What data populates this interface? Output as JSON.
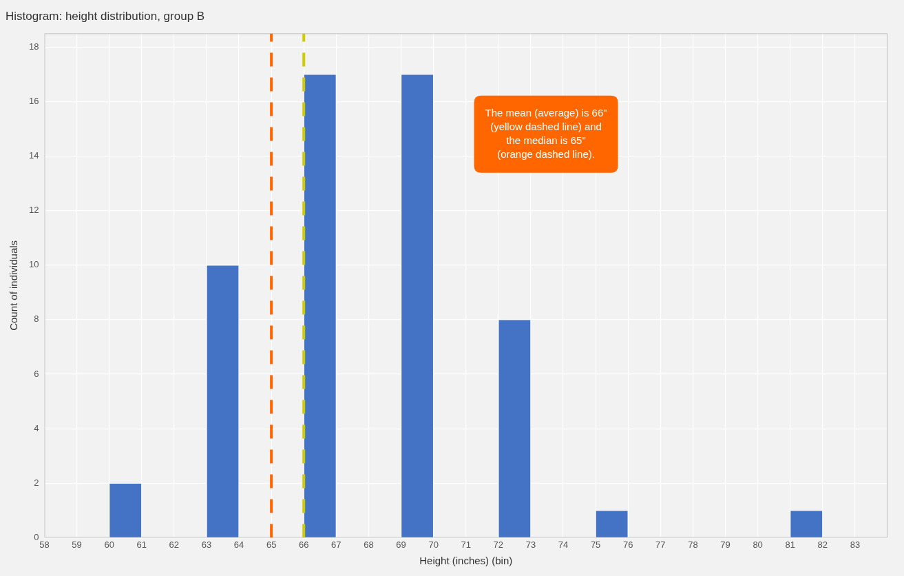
{
  "chart_data": {
    "type": "histogram",
    "title": "Histogram: height distribution, group B",
    "xlabel": "Height (inches) (bin)",
    "ylabel": "Count of individuals",
    "bins": [
      59,
      62,
      65,
      68,
      71,
      74,
      77,
      80,
      83
    ],
    "values": [
      2,
      10,
      17,
      17,
      8,
      1,
      0,
      1
    ],
    "color": "#4472C4",
    "xlim": [
      58,
      84
    ],
    "xticks": [
      58,
      59,
      60,
      61,
      62,
      63,
      64,
      65,
      66,
      67,
      68,
      69,
      70,
      71,
      72,
      73,
      74,
      75,
      76,
      77,
      78,
      79,
      80,
      81,
      82,
      83
    ],
    "ylim": [
      0,
      18.5
    ],
    "yticks": [
      0,
      2,
      4,
      6,
      8,
      10,
      12,
      14,
      16,
      18
    ],
    "grid": true,
    "vlines": [
      {
        "x": 65,
        "color": "#FF6600",
        "line_style": "dashed"
      },
      {
        "x": 66,
        "color": "#CCCC00",
        "line_style": "dashed"
      }
    ],
    "annotations": [
      {
        "text": "The mean (average) is 66\"\n(yellow dashed line) and\nthe median is 65\"\n(orange dashed line).",
        "color": "#FF6600"
      }
    ]
  }
}
